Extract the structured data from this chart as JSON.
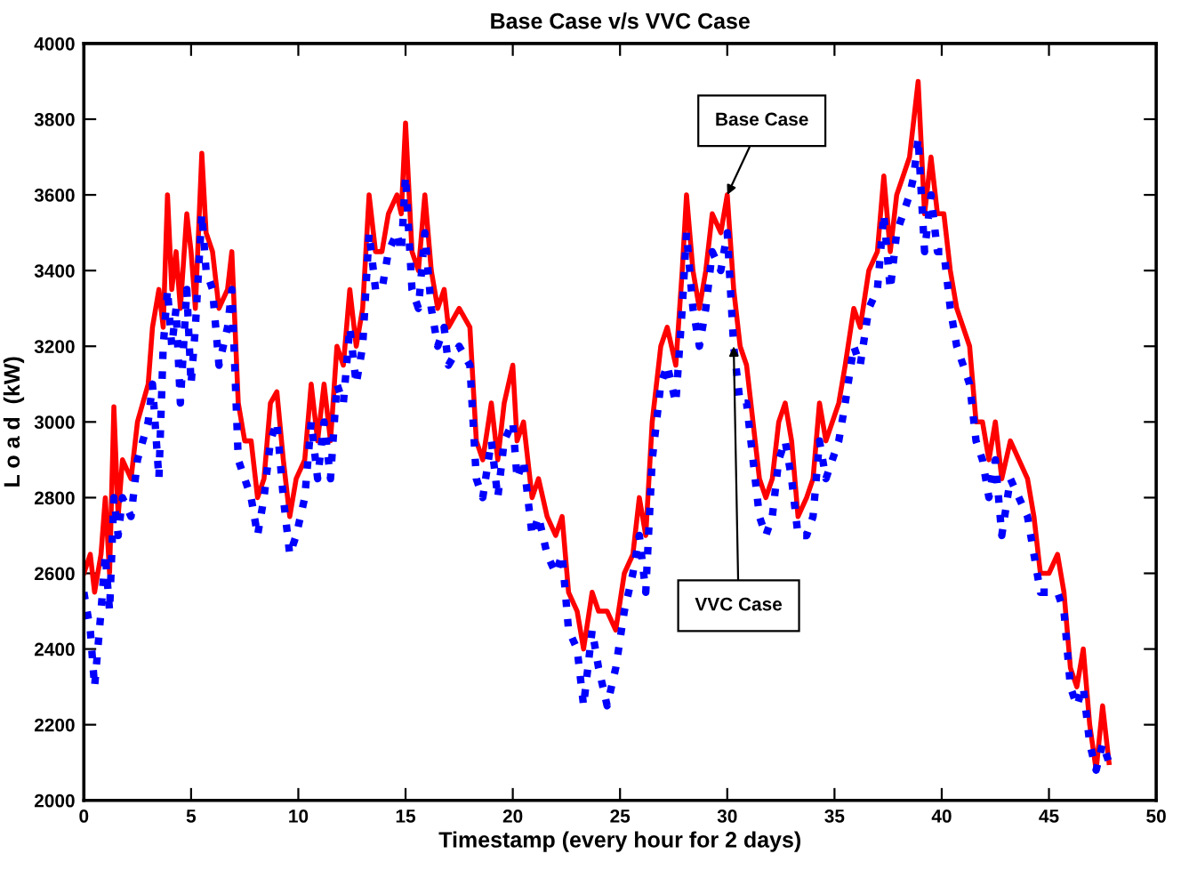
{
  "chart_data": {
    "type": "line",
    "title": "Base Case v/s VVC Case",
    "xlabel": "Timestamp (every hour for 2 days)",
    "ylabel": "L o a d  (kW)",
    "xlim": [
      0,
      50
    ],
    "xticks": [
      0,
      5,
      10,
      15,
      20,
      25,
      30,
      35,
      40,
      45,
      50
    ],
    "ylim": [
      2000,
      4000
    ],
    "yticks": [
      2000,
      2200,
      2400,
      2600,
      2800,
      3000,
      3200,
      3400,
      3600,
      3800,
      4000
    ],
    "grid": false,
    "annotations": [
      {
        "text": "Base Case",
        "x": 30.0,
        "y": 3600
      },
      {
        "text": "VVC Case",
        "x": 30.3,
        "y": 3200
      }
    ],
    "series": [
      {
        "color": "#ff0000",
        "line_style": "solid",
        "x": [
          0,
          0.3,
          0.5,
          0.8,
          1.0,
          1.2,
          1.4,
          1.6,
          1.8,
          2.2,
          2.5,
          3.0,
          3.2,
          3.5,
          3.7,
          3.9,
          4.1,
          4.3,
          4.5,
          4.8,
          5.0,
          5.2,
          5.5,
          5.7,
          6.0,
          6.3,
          6.7,
          6.9,
          7.2,
          7.5,
          7.8,
          8.1,
          8.4,
          8.7,
          9.0,
          9.3,
          9.6,
          9.9,
          10.3,
          10.6,
          10.9,
          11.2,
          11.5,
          11.8,
          12.1,
          12.4,
          12.7,
          13.0,
          13.3,
          13.6,
          13.9,
          14.2,
          14.6,
          14.8,
          15.0,
          15.3,
          15.6,
          15.9,
          16.2,
          16.5,
          16.8,
          17.0,
          17.5,
          18.0,
          18.3,
          18.6,
          19.0,
          19.3,
          19.6,
          20.0,
          20.2,
          20.5,
          20.9,
          21.2,
          21.6,
          22.0,
          22.3,
          22.6,
          23.0,
          23.3,
          23.7,
          24.0,
          24.4,
          24.8,
          25.2,
          25.6,
          25.9,
          26.2,
          26.5,
          26.9,
          27.2,
          27.6,
          27.9,
          28.1,
          28.4,
          28.7,
          29.0,
          29.3,
          29.7,
          30.0,
          30.3,
          30.6,
          30.9,
          31.2,
          31.5,
          31.8,
          32.1,
          32.4,
          32.7,
          33.0,
          33.3,
          33.7,
          34.0,
          34.3,
          34.6,
          34.9,
          35.2,
          35.5,
          35.9,
          36.2,
          36.6,
          37.0,
          37.3,
          37.6,
          37.9,
          38.2,
          38.5,
          38.7,
          38.9,
          39.2,
          39.5,
          39.8,
          40.1,
          40.4,
          40.7,
          41.0,
          41.3,
          41.6,
          41.9,
          42.2,
          42.5,
          42.8,
          43.2,
          43.6,
          44.0,
          44.3,
          44.6,
          45.0,
          45.4,
          45.7,
          46.0,
          46.3,
          46.6,
          46.9,
          47.2,
          47.5,
          47.8
        ],
        "values": [
          2600,
          2650,
          2550,
          2650,
          2800,
          2600,
          3040,
          2750,
          2900,
          2850,
          3000,
          3100,
          3250,
          3350,
          3250,
          3600,
          3350,
          3450,
          3300,
          3550,
          3450,
          3300,
          3710,
          3500,
          3450,
          3300,
          3350,
          3450,
          3050,
          2950,
          2950,
          2800,
          2850,
          3050,
          3080,
          2900,
          2750,
          2850,
          2900,
          3100,
          2950,
          3100,
          2950,
          3200,
          3150,
          3350,
          3200,
          3300,
          3600,
          3450,
          3450,
          3550,
          3600,
          3550,
          3790,
          3450,
          3400,
          3600,
          3400,
          3300,
          3350,
          3250,
          3300,
          3250,
          2950,
          2900,
          3050,
          2900,
          3050,
          3150,
          2950,
          3000,
          2800,
          2850,
          2750,
          2700,
          2750,
          2550,
          2500,
          2400,
          2550,
          2500,
          2500,
          2450,
          2600,
          2650,
          2800,
          2700,
          3000,
          3200,
          3250,
          3150,
          3400,
          3600,
          3400,
          3300,
          3400,
          3550,
          3500,
          3600,
          3350,
          3200,
          3150,
          3000,
          2850,
          2800,
          2850,
          3000,
          3050,
          2950,
          2750,
          2800,
          2850,
          3050,
          2950,
          3000,
          3050,
          3150,
          3300,
          3250,
          3400,
          3450,
          3650,
          3450,
          3600,
          3650,
          3700,
          3800,
          3900,
          3550,
          3700,
          3550,
          3550,
          3400,
          3300,
          3250,
          3200,
          3000,
          3000,
          2900,
          3000,
          2850,
          2950,
          2900,
          2850,
          2750,
          2600,
          2600,
          2650,
          2550,
          2350,
          2300,
          2400,
          2200,
          2080,
          2250,
          2100
        ]
      },
      {
        "color": "#0000ff",
        "line_style": "dotted",
        "x": [
          0,
          0.3,
          0.5,
          0.8,
          1.0,
          1.2,
          1.4,
          1.6,
          1.8,
          2.2,
          2.5,
          3.0,
          3.2,
          3.5,
          3.7,
          3.9,
          4.1,
          4.3,
          4.5,
          4.8,
          5.0,
          5.2,
          5.5,
          5.7,
          6.0,
          6.3,
          6.7,
          6.9,
          7.2,
          7.5,
          7.8,
          8.1,
          8.4,
          8.7,
          9.0,
          9.3,
          9.6,
          9.9,
          10.3,
          10.6,
          10.9,
          11.2,
          11.5,
          11.8,
          12.1,
          12.4,
          12.7,
          13.0,
          13.3,
          13.6,
          13.9,
          14.2,
          14.6,
          14.8,
          15.0,
          15.3,
          15.6,
          15.9,
          16.2,
          16.5,
          16.8,
          17.0,
          17.5,
          18.0,
          18.3,
          18.6,
          19.0,
          19.3,
          19.6,
          20.0,
          20.2,
          20.5,
          20.9,
          21.2,
          21.6,
          22.0,
          22.3,
          22.6,
          23.0,
          23.3,
          23.7,
          24.0,
          24.4,
          24.8,
          25.2,
          25.6,
          25.9,
          26.2,
          26.5,
          26.9,
          27.2,
          27.6,
          27.9,
          28.1,
          28.4,
          28.7,
          29.0,
          29.3,
          29.7,
          30.0,
          30.3,
          30.6,
          30.9,
          31.2,
          31.5,
          31.8,
          32.1,
          32.4,
          32.7,
          33.0,
          33.3,
          33.7,
          34.0,
          34.3,
          34.6,
          34.9,
          35.2,
          35.5,
          35.9,
          36.2,
          36.6,
          37.0,
          37.3,
          37.6,
          37.9,
          38.2,
          38.5,
          38.7,
          38.9,
          39.2,
          39.5,
          39.8,
          40.1,
          40.4,
          40.7,
          41.0,
          41.3,
          41.6,
          41.9,
          42.2,
          42.5,
          42.8,
          43.2,
          43.6,
          44.0,
          44.3,
          44.6,
          45.0,
          45.4,
          45.7,
          46.0,
          46.3,
          46.6,
          46.9,
          47.2,
          47.5,
          47.8
        ],
        "values": [
          2550,
          2450,
          2300,
          2500,
          2650,
          2500,
          2800,
          2700,
          2800,
          2750,
          2900,
          3000,
          3100,
          2850,
          3200,
          3350,
          3200,
          3300,
          3050,
          3350,
          3100,
          3250,
          3550,
          3400,
          3350,
          3150,
          3250,
          3350,
          2900,
          2850,
          2800,
          2700,
          2800,
          2950,
          3000,
          2800,
          2650,
          2700,
          2800,
          3000,
          2850,
          3000,
          2850,
          3100,
          3050,
          3250,
          3100,
          3200,
          3500,
          3350,
          3350,
          3450,
          3500,
          3450,
          3650,
          3350,
          3300,
          3500,
          3300,
          3200,
          3250,
          3150,
          3200,
          3150,
          2850,
          2800,
          2950,
          2800,
          2950,
          3000,
          2850,
          2900,
          2700,
          2750,
          2650,
          2600,
          2650,
          2450,
          2400,
          2250,
          2450,
          2350,
          2250,
          2350,
          2500,
          2600,
          2700,
          2550,
          2900,
          3100,
          3150,
          3050,
          3300,
          3500,
          3300,
          3200,
          3300,
          3450,
          3400,
          3500,
          3200,
          3050,
          3050,
          2900,
          2750,
          2700,
          2750,
          2900,
          2950,
          2850,
          2700,
          2700,
          2750,
          2950,
          2850,
          2900,
          2950,
          3050,
          3200,
          3150,
          3300,
          3350,
          3550,
          3350,
          3500,
          3550,
          3600,
          3650,
          3750,
          3450,
          3600,
          3450,
          3450,
          3300,
          3200,
          3150,
          3100,
          2950,
          2900,
          2800,
          2900,
          2700,
          2850,
          2800,
          2750,
          2650,
          2550,
          2550,
          2550,
          2500,
          2300,
          2250,
          2300,
          2150,
          2080,
          2150,
          2100
        ]
      }
    ]
  }
}
